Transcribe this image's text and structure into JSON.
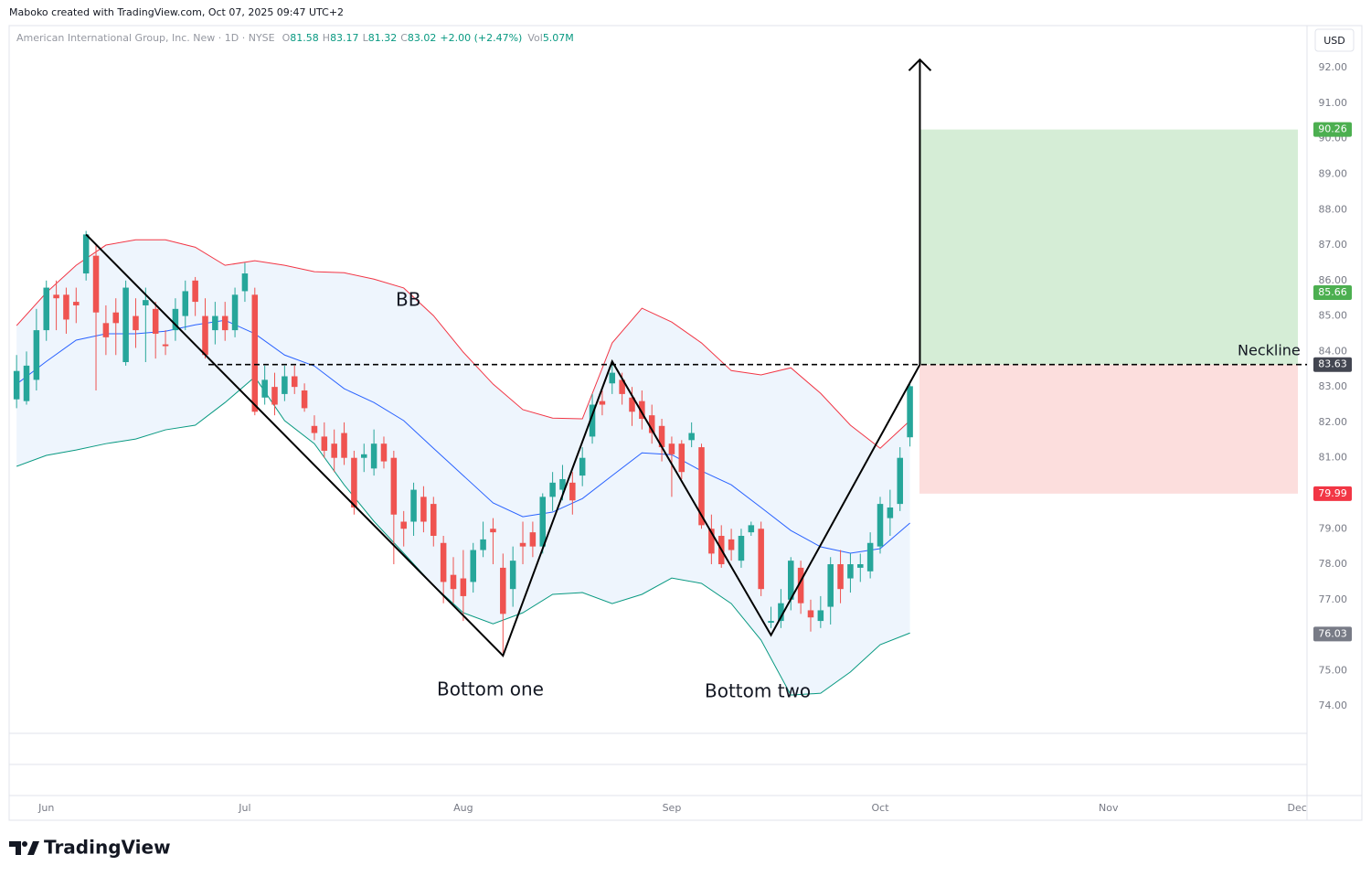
{
  "attribution": "Maboko created with TradingView.com, Oct 07, 2025 09:47 UTC+2",
  "brand": "TradingView",
  "chart_data": {
    "type": "candlestick",
    "symbol": "American International Group, Inc. New · 1D · NYSE",
    "legend": {
      "open_label": "O",
      "high_label": "H",
      "low_label": "L",
      "close_label": "C",
      "change": "+2.00 (+2.47%)",
      "volume_label": "Vol",
      "volume": "5.07M"
    },
    "currency": "USD",
    "up_color": "#26a69a",
    "down_color": "#ef5350",
    "open": [
      82.65,
      82.6,
      83.2,
      84.6,
      85.6,
      85.6,
      85.4,
      86.2,
      86.7,
      84.8,
      85.1,
      83.7,
      85.0,
      85.3,
      85.2,
      84.2,
      84.6,
      85.0,
      86.0,
      85.0,
      84.6,
      85.0,
      84.6,
      85.7,
      85.6,
      82.7,
      83.0,
      82.8,
      83.3,
      82.9,
      81.9,
      81.6,
      81.4,
      81.7,
      81.0,
      81.0,
      80.7,
      81.4,
      81.0,
      79.2,
      79.2,
      79.9,
      79.7,
      78.6,
      77.7,
      77.6,
      77.5,
      78.4,
      79.0,
      77.9,
      77.3,
      78.6,
      78.9,
      78.5,
      79.9,
      80.1,
      80.3,
      80.5,
      81.6,
      82.6,
      83.1,
      83.2,
      82.7,
      82.6,
      82.2,
      81.9,
      81.4,
      81.4,
      81.5,
      81.3,
      79.0,
      78.8,
      78.7,
      78.1,
      78.9,
      79.0,
      76.35,
      76.4,
      77.0,
      77.9,
      76.7,
      76.4,
      76.8,
      78.0,
      77.6,
      77.9,
      77.8,
      78.5,
      79.3,
      79.7,
      81.58
    ],
    "high": [
      83.9,
      84.0,
      85.2,
      86.0,
      86.0,
      85.8,
      85.8,
      87.4,
      87.0,
      85.3,
      85.5,
      86.0,
      85.5,
      85.8,
      85.4,
      84.6,
      85.5,
      86.0,
      86.1,
      85.5,
      85.4,
      85.4,
      85.8,
      86.5,
      85.8,
      83.6,
      83.4,
      83.6,
      83.6,
      83.1,
      82.2,
      82.0,
      81.8,
      82.0,
      81.2,
      81.4,
      81.8,
      81.6,
      81.2,
      79.5,
      80.3,
      80.2,
      79.9,
      78.8,
      78.2,
      78.4,
      78.6,
      79.2,
      79.3,
      78.3,
      78.5,
      79.2,
      79.2,
      80.0,
      80.6,
      80.8,
      80.6,
      81.3,
      82.8,
      82.9,
      83.7,
      83.4,
      83.0,
      82.9,
      82.5,
      82.1,
      81.6,
      81.5,
      82.0,
      81.4,
      79.4,
      79.1,
      79.0,
      79.0,
      79.2,
      79.2,
      76.8,
      77.3,
      78.2,
      78.1,
      77.0,
      77.1,
      78.2,
      78.4,
      78.3,
      78.3,
      78.9,
      79.9,
      80.1,
      81.3,
      83.17
    ],
    "low": [
      82.4,
      82.5,
      82.9,
      84.3,
      84.6,
      84.5,
      84.8,
      86.0,
      82.9,
      83.9,
      83.9,
      83.6,
      84.1,
      83.7,
      83.8,
      83.9,
      84.3,
      84.6,
      85.0,
      83.8,
      84.2,
      84.3,
      84.4,
      85.4,
      82.2,
      82.5,
      82.2,
      82.6,
      82.8,
      82.3,
      81.5,
      81.0,
      80.6,
      80.8,
      79.4,
      80.6,
      80.5,
      80.7,
      78.0,
      78.5,
      78.8,
      78.9,
      78.5,
      76.9,
      76.9,
      76.4,
      77.2,
      78.2,
      78.0,
      75.5,
      76.8,
      78.0,
      78.2,
      78.3,
      79.5,
      79.8,
      79.4,
      80.2,
      81.4,
      82.2,
      82.8,
      82.5,
      81.9,
      81.8,
      81.4,
      80.9,
      79.9,
      80.4,
      81.3,
      79.0,
      78.0,
      77.9,
      78.1,
      77.9,
      78.8,
      77.1,
      76.2,
      76.2,
      76.7,
      76.6,
      76.1,
      76.2,
      76.3,
      76.9,
      77.2,
      77.5,
      77.6,
      78.3,
      78.8,
      79.5,
      81.32
    ],
    "close": [
      83.45,
      83.6,
      84.6,
      85.8,
      85.5,
      84.9,
      85.3,
      87.3,
      85.1,
      84.4,
      84.8,
      85.8,
      84.6,
      85.45,
      84.5,
      84.15,
      85.2,
      85.7,
      85.4,
      83.9,
      85.0,
      84.6,
      85.6,
      86.2,
      82.3,
      83.2,
      82.5,
      83.3,
      83.0,
      82.4,
      81.7,
      81.2,
      81.0,
      81.0,
      79.6,
      81.1,
      81.4,
      80.9,
      79.4,
      79.0,
      80.1,
      79.2,
      78.8,
      77.5,
      77.3,
      77.1,
      78.4,
      78.7,
      78.9,
      76.6,
      78.1,
      78.5,
      78.5,
      79.9,
      80.3,
      80.4,
      79.8,
      81.0,
      82.5,
      82.5,
      83.4,
      82.8,
      82.3,
      82.1,
      81.7,
      81.3,
      81.1,
      80.6,
      81.7,
      79.1,
      78.3,
      78.0,
      78.4,
      78.8,
      79.1,
      77.3,
      76.4,
      76.9,
      78.1,
      76.9,
      76.5,
      76.7,
      78.0,
      77.3,
      78.0,
      78.0,
      78.6,
      79.7,
      79.6,
      81.0,
      83.02
    ],
    "bands": {
      "x": [
        0,
        3,
        6,
        9,
        12,
        15,
        18,
        21,
        24,
        27,
        30,
        33,
        36,
        39,
        42,
        45,
        48,
        51,
        54,
        57,
        60,
        63,
        66,
        69,
        72,
        75,
        78,
        81,
        84,
        87,
        90
      ],
      "fill": "#e3effb",
      "series": [
        {
          "color": "#f23645",
          "values": [
            84.73,
            85.66,
            86.43,
            87.0,
            87.15,
            87.15,
            86.94,
            86.43,
            86.56,
            86.43,
            86.25,
            86.22,
            86.04,
            85.79,
            85.01,
            83.98,
            83.08,
            82.36,
            82.12,
            82.1,
            84.24,
            85.22,
            84.83,
            84.24,
            83.46,
            83.34,
            83.54,
            82.82,
            81.92,
            81.27,
            82.05
          ]
        },
        {
          "color": "#2962ff",
          "values": [
            83.08,
            83.72,
            84.32,
            84.5,
            84.5,
            84.57,
            84.75,
            84.88,
            84.5,
            83.9,
            83.59,
            82.95,
            82.56,
            82.05,
            81.27,
            80.5,
            79.73,
            79.34,
            79.47,
            79.85,
            80.5,
            81.14,
            81.09,
            80.63,
            80.24,
            79.6,
            78.95,
            78.49,
            78.31,
            78.44,
            79.16
          ]
        },
        {
          "color": "#089981",
          "values": [
            80.76,
            81.07,
            81.22,
            81.4,
            81.53,
            81.79,
            81.92,
            82.56,
            83.28,
            82.05,
            81.4,
            80.24,
            79.21,
            78.31,
            77.4,
            76.63,
            76.32,
            76.63,
            77.15,
            77.2,
            76.89,
            77.15,
            77.61,
            77.46,
            76.89,
            75.86,
            74.31,
            74.36,
            74.96,
            75.73,
            76.06
          ]
        }
      ]
    },
    "pattern": {
      "x": [
        7,
        49,
        60,
        76,
        91,
        91
      ],
      "values": [
        87.3,
        75.42,
        83.72,
        76.0,
        83.63,
        92.23
      ]
    },
    "price_labels": [
      {
        "value": 90.26,
        "color": "#4caf50"
      },
      {
        "value": 85.66,
        "color": "#4caf50"
      },
      {
        "value": 83.63,
        "color": "#434651"
      },
      {
        "value": 79.99,
        "color": "#f23645"
      },
      {
        "value": 76.03,
        "color": "#787b86"
      }
    ],
    "target_color": "#d5edd6",
    "stop_color": "#fcdedd",
    "annotations": {
      "bb": "BB",
      "bottom_one": "Bottom one",
      "bottom_two": "Bottom two",
      "neckline": "Neckline"
    },
    "grid": false,
    "ylim": [
      73.23,
      93.19
    ],
    "yticks": [
      {
        "value": 74,
        "label": "74.00"
      },
      {
        "value": 75,
        "label": "75.00"
      },
      {
        "value": 76,
        "label": "76.00"
      },
      {
        "value": 77,
        "label": "77.00"
      },
      {
        "value": 78,
        "label": "78.00"
      },
      {
        "value": 79,
        "label": "79.00"
      },
      {
        "value": 80,
        "label": "80.00"
      },
      {
        "value": 81,
        "label": "81.00"
      },
      {
        "value": 82,
        "label": "82.00"
      },
      {
        "value": 83,
        "label": "83.00"
      },
      {
        "value": 84,
        "label": "84.00"
      },
      {
        "value": 85,
        "label": "85.00"
      },
      {
        "value": 86,
        "label": "86.00"
      },
      {
        "value": 87,
        "label": "87.00"
      },
      {
        "value": 88,
        "label": "88.00"
      },
      {
        "value": 89,
        "label": "89.00"
      },
      {
        "value": 90,
        "label": "90.00"
      },
      {
        "value": 91,
        "label": "91.00"
      },
      {
        "value": 92,
        "label": "92.00"
      }
    ],
    "xlim": [
      -0.75,
      130
    ],
    "xticks": [
      {
        "value": 3,
        "label": "Jun"
      },
      {
        "value": 23,
        "label": "Jul"
      },
      {
        "value": 45,
        "label": "Aug"
      },
      {
        "value": 66,
        "label": "Sep"
      },
      {
        "value": 87,
        "label": "Oct"
      },
      {
        "value": 110,
        "label": "Nov"
      },
      {
        "value": 129,
        "label": "Dec"
      }
    ]
  }
}
